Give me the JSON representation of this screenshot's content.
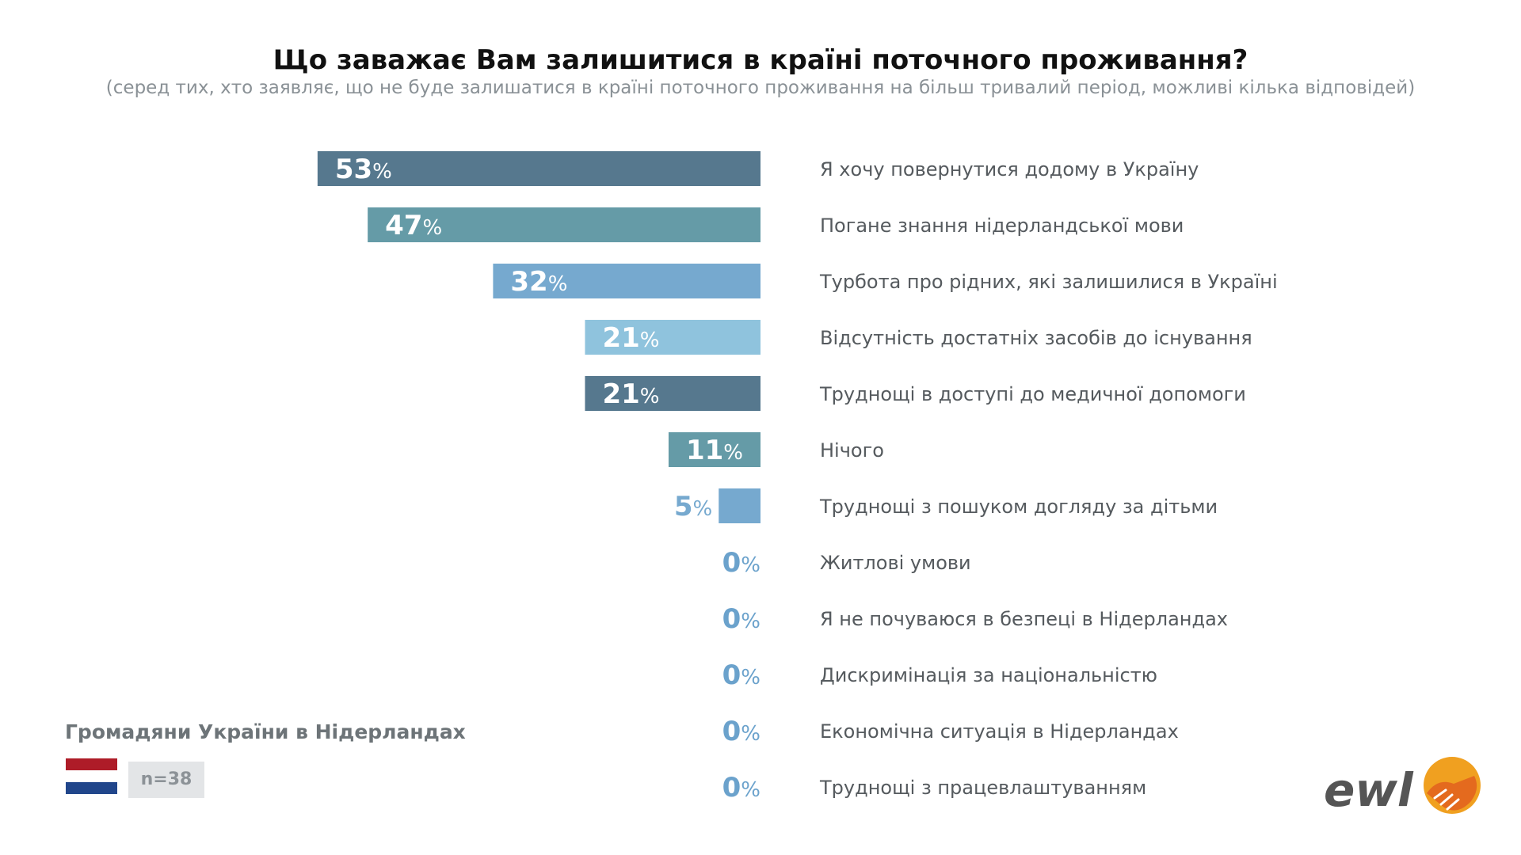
{
  "title": "Що заважає Вам залишитися в країні поточного проживання?",
  "subtitle": "(серед тих, хто заявляє, що не буде залишатися в країні поточного проживання на більш тривалий період, можливі кілька відповідей)",
  "country_label": "Громадяни України в Нідерландах",
  "sample_size": "n=38",
  "logo_text": "ewl",
  "colors": {
    "dark_slate": "#56788e",
    "teal": "#659ba7",
    "mid_blue": "#76a9cf",
    "light_blue": "#8fc3dd",
    "zero_label": "#6ba2cc",
    "flag_red": "#ae1c28",
    "flag_white": "#ffffff",
    "flag_blue": "#21468b",
    "logo_text": "#555555",
    "logo_orange": "#f0a020"
  },
  "chart_data": {
    "type": "bar",
    "orientation": "horizontal",
    "unit": "%",
    "xlim": [
      0,
      53
    ],
    "categories": [
      "Я хочу повернутися додому в Україну",
      "Погане знання нідерландської мови",
      "Турбота про рідних, які залишилися в Україні",
      "Відсутність достатніх засобів до існування",
      "Труднощі в доступі до медичної допомоги",
      "Нічого",
      "Труднощі з пошуком догляду за дітьми",
      "Житлові умови",
      "Я не почуваюся в безпеці в Нідерландах",
      "Дискримінація за національністю",
      "Економічна ситуація в Нідерландах",
      "Труднощі з працевлаштуванням"
    ],
    "values": [
      53,
      47,
      32,
      21,
      21,
      11,
      5,
      0,
      0,
      0,
      0,
      0
    ],
    "bar_colors": [
      "#56788e",
      "#659ba7",
      "#76a9cf",
      "#8fc3dd",
      "#56788e",
      "#659ba7",
      "#76a9cf",
      "#8fc3dd",
      "#56788e",
      "#659ba7",
      "#76a9cf",
      "#8fc3dd"
    ]
  }
}
